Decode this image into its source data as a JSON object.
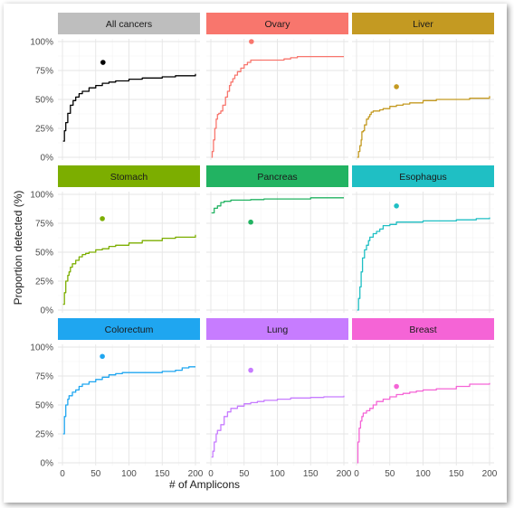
{
  "chart_data": {
    "type": "line",
    "xlabel": "# of Amplicons",
    "ylabel": "Proportion detected (%)",
    "xlim": [
      0,
      200
    ],
    "ylim": [
      0,
      100
    ],
    "x_ticks": [
      "0",
      "50",
      "100",
      "150",
      "200"
    ],
    "y_ticks": [
      "0%",
      "25%",
      "50%",
      "75%",
      "100%"
    ],
    "grid": true,
    "panels": [
      {
        "name": "All cancers",
        "strip_color": "#bebebe",
        "line_color": "#000000",
        "point": {
          "x": 61,
          "y": 82
        },
        "x": [
          1,
          3,
          5,
          8,
          12,
          16,
          20,
          25,
          30,
          40,
          50,
          60,
          70,
          80,
          100,
          120,
          150,
          170,
          200
        ],
        "y": [
          14,
          23,
          30,
          38,
          45,
          49,
          52,
          55,
          57,
          60,
          62,
          64,
          65,
          66,
          67.5,
          68.5,
          69.5,
          70.5,
          72
        ]
      },
      {
        "name": "Ovary",
        "strip_color": "#f8766d",
        "line_color": "#f8766d",
        "point": {
          "x": 61,
          "y": 100
        },
        "x": [
          1,
          2,
          4,
          6,
          8,
          10,
          12,
          15,
          18,
          20,
          22,
          25,
          28,
          30,
          33,
          36,
          40,
          45,
          50,
          55,
          60,
          70,
          80,
          100,
          110,
          120,
          130,
          150,
          170,
          200
        ],
        "y": [
          0,
          5,
          15,
          25,
          33,
          37,
          38,
          40,
          45,
          45,
          52,
          57,
          62,
          65,
          68,
          71,
          74,
          77,
          80,
          82,
          84,
          84,
          84,
          84,
          85,
          86,
          87,
          87,
          87,
          87
        ]
      },
      {
        "name": "Liver",
        "strip_color": "#c49a22",
        "line_color": "#c49a22",
        "point": {
          "x": 60,
          "y": 61
        },
        "x": [
          1,
          3,
          5,
          7,
          8,
          10,
          12,
          15,
          18,
          20,
          22,
          25,
          30,
          35,
          40,
          50,
          60,
          70,
          80,
          100,
          120,
          150,
          170,
          200
        ],
        "y": [
          0,
          5,
          10,
          15,
          22,
          23,
          28,
          33,
          35,
          37,
          39,
          40,
          40,
          41,
          42,
          44,
          45,
          46,
          47,
          49,
          50,
          50,
          51,
          53
        ]
      },
      {
        "name": "Stomach",
        "strip_color": "#7cae00",
        "line_color": "#7cae00",
        "point": {
          "x": 60,
          "y": 79
        },
        "x": [
          1,
          3,
          5,
          8,
          10,
          12,
          15,
          20,
          25,
          30,
          35,
          40,
          50,
          60,
          70,
          80,
          100,
          120,
          150,
          170,
          200
        ],
        "y": [
          5,
          15,
          25,
          30,
          33,
          37,
          40,
          43,
          46,
          48,
          49,
          50,
          52,
          53,
          55,
          56,
          58,
          60,
          62,
          63,
          65
        ]
      },
      {
        "name": "Pancreas",
        "strip_color": "#22b362",
        "line_color": "#22b362",
        "point": {
          "x": 60,
          "y": 76
        },
        "x": [
          1,
          5,
          10,
          15,
          20,
          30,
          40,
          50,
          60,
          80,
          100,
          150,
          200
        ],
        "y": [
          84,
          88,
          90,
          93,
          94,
          95,
          95,
          95,
          95.5,
          96,
          96,
          97,
          97
        ]
      },
      {
        "name": "Esophagus",
        "strip_color": "#1fbfc4",
        "line_color": "#1fbfc4",
        "point": {
          "x": 60,
          "y": 90
        },
        "x": [
          1,
          3,
          5,
          7,
          9,
          12,
          15,
          18,
          20,
          25,
          30,
          35,
          40,
          50,
          60,
          70,
          80,
          90,
          100,
          120,
          150,
          170,
          180,
          200
        ],
        "y": [
          0,
          10,
          20,
          33,
          45,
          52,
          56,
          60,
          63,
          66,
          68,
          70,
          73,
          74,
          76,
          76,
          76,
          76,
          77,
          77,
          78,
          78,
          79,
          80
        ]
      },
      {
        "name": "Colorectum",
        "strip_color": "#1fa6f0",
        "line_color": "#1fa6f0",
        "point": {
          "x": 60,
          "y": 92
        },
        "x": [
          1,
          3,
          5,
          8,
          10,
          15,
          20,
          25,
          30,
          40,
          50,
          60,
          70,
          80,
          90,
          100,
          120,
          150,
          170,
          180,
          190,
          200
        ],
        "y": [
          25,
          40,
          50,
          55,
          58,
          61,
          63,
          66,
          68,
          70,
          72,
          74,
          76,
          77,
          78,
          78,
          78,
          79,
          80,
          82,
          83,
          83
        ]
      },
      {
        "name": "Lung",
        "strip_color": "#c77cff",
        "line_color": "#c77cff",
        "point": {
          "x": 60,
          "y": 80
        },
        "x": [
          1,
          3,
          5,
          8,
          10,
          15,
          20,
          25,
          30,
          40,
          50,
          60,
          70,
          80,
          100,
          120,
          150,
          170,
          200
        ],
        "y": [
          5,
          10,
          18,
          25,
          28,
          33,
          40,
          44,
          47,
          49,
          51,
          52,
          53,
          54,
          55,
          56,
          56.5,
          57,
          58
        ]
      },
      {
        "name": "Breast",
        "strip_color": "#f564d6",
        "line_color": "#f564d6",
        "point": {
          "x": 60,
          "y": 66
        },
        "x": [
          1,
          2,
          4,
          6,
          8,
          10,
          15,
          20,
          25,
          30,
          40,
          50,
          60,
          70,
          80,
          90,
          100,
          120,
          150,
          170,
          200
        ],
        "y": [
          0,
          18,
          30,
          36,
          40,
          43,
          45,
          47,
          50,
          53,
          55,
          57,
          59,
          60,
          61,
          62,
          63,
          64,
          66,
          68,
          69
        ]
      }
    ]
  }
}
